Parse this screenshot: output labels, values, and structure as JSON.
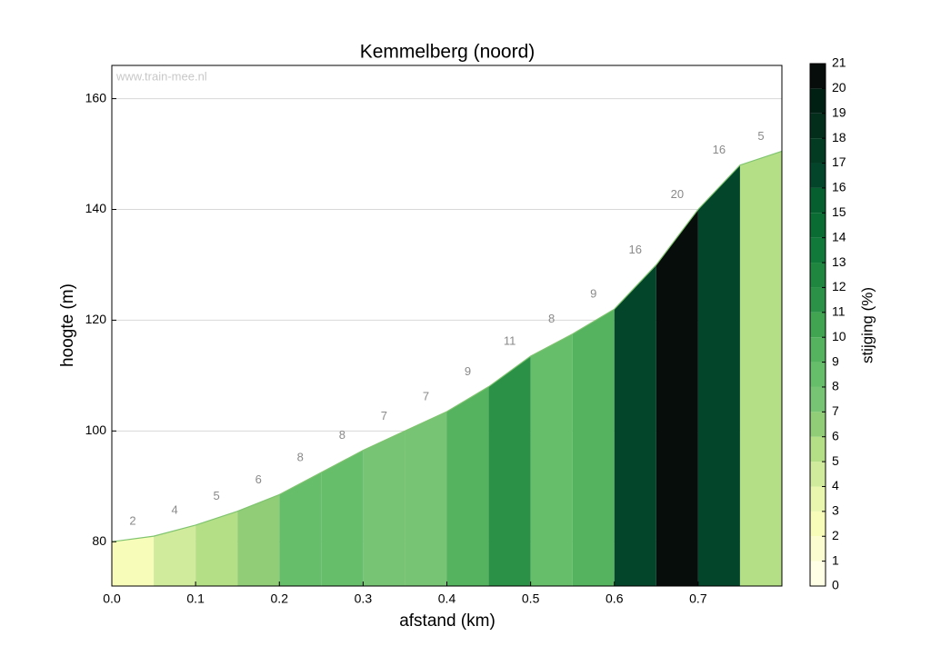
{
  "chart_data": {
    "type": "area",
    "title": "Kemmelberg (noord)",
    "xlabel": "afstand (km)",
    "ylabel": "hoogte (m)",
    "watermark": "www.train-mee.nl",
    "x": [
      0,
      0.05,
      0.1,
      0.15,
      0.2,
      0.25,
      0.3,
      0.35,
      0.4,
      0.45,
      0.5,
      0.55,
      0.6,
      0.65,
      0.7,
      0.75,
      0.8
    ],
    "values": [
      80,
      81,
      83,
      85.5,
      88.5,
      92.5,
      96.5,
      100,
      103.5,
      108,
      113.5,
      117.5,
      122,
      130,
      140,
      148,
      150.5
    ],
    "gradients": [
      2,
      4,
      5,
      6,
      8,
      8,
      7,
      7,
      9,
      11,
      8,
      9,
      16,
      20,
      16,
      5
    ],
    "line_color": "#7fc46f",
    "xlim": [
      0,
      0.8
    ],
    "ylim": [
      72,
      166
    ],
    "xticks": [
      {
        "value": 0,
        "label": "0.0"
      },
      0.1,
      0.2,
      0.3,
      0.4,
      0.5,
      0.6,
      0.7
    ],
    "yticks": [
      80,
      100,
      120,
      140,
      160
    ],
    "grid": true,
    "colorbar": {
      "label": "stijging (%)",
      "lim": [
        0,
        21
      ],
      "ticks": [
        0,
        1,
        2,
        3,
        4,
        5,
        6,
        7,
        8,
        9,
        10,
        11,
        12,
        13,
        14,
        15,
        16,
        17,
        18,
        19,
        20,
        21
      ],
      "colors": [
        "#ffffe5",
        "#fbfdd0",
        "#f7fcb9",
        "#e8f6ae",
        "#d0eb9c",
        "#b4df86",
        "#90cd76",
        "#76c474",
        "#66bd6a",
        "#55b25f",
        "#41a451",
        "#2a9146",
        "#1f8640",
        "#117a3a",
        "#0a6c33",
        "#055f2e",
        "#03452a",
        "#033a22",
        "#022e1b",
        "#012014",
        "#060d0a"
      ]
    }
  }
}
